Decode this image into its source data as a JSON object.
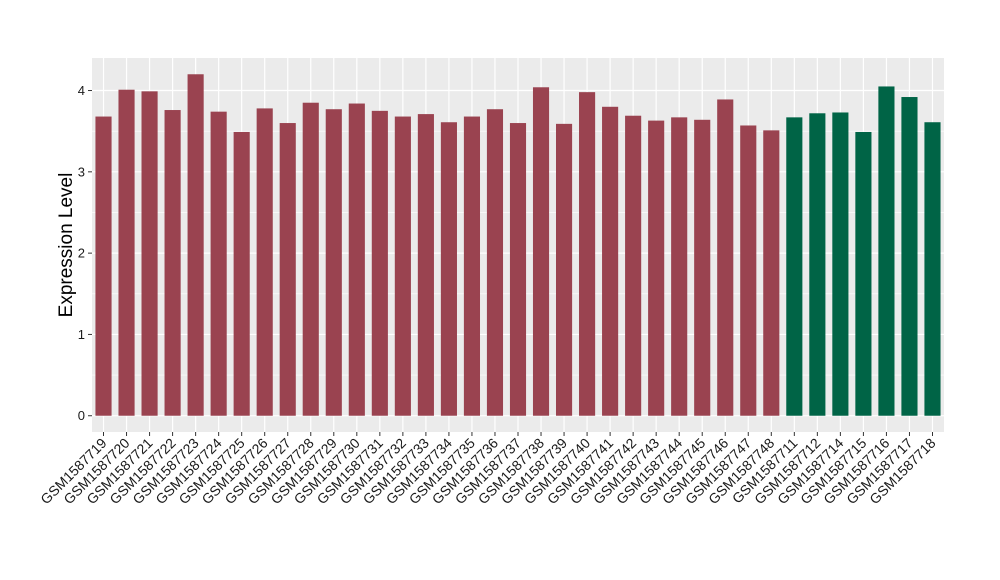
{
  "chart_data": {
    "type": "bar",
    "title": "",
    "xlabel": "",
    "ylabel": "Expression Level",
    "ylim": [
      -0.2,
      4.4
    ],
    "yticks": [
      0,
      1,
      2,
      3,
      4
    ],
    "grid": true,
    "legend": "none",
    "categories": [
      "GSM1587719",
      "GSM1587720",
      "GSM1587721",
      "GSM1587722",
      "GSM1587723",
      "GSM1587724",
      "GSM1587725",
      "GSM1587726",
      "GSM1587727",
      "GSM1587728",
      "GSM1587729",
      "GSM1587730",
      "GSM1587731",
      "GSM1587732",
      "GSM1587733",
      "GSM1587734",
      "GSM1587735",
      "GSM1587736",
      "GSM1587737",
      "GSM1587738",
      "GSM1587739",
      "GSM1587740",
      "GSM1587741",
      "GSM1587742",
      "GSM1587743",
      "GSM1587744",
      "GSM1587745",
      "GSM1587746",
      "GSM1587747",
      "GSM1587748",
      "GSM1587711",
      "GSM1587712",
      "GSM1587714",
      "GSM1587715",
      "GSM1587716",
      "GSM1587717",
      "GSM1587718"
    ],
    "values": [
      3.68,
      4.01,
      3.99,
      3.76,
      4.2,
      3.74,
      3.49,
      3.78,
      3.6,
      3.85,
      3.77,
      3.84,
      3.75,
      3.68,
      3.71,
      3.61,
      3.68,
      3.77,
      3.6,
      4.04,
      3.59,
      3.98,
      3.8,
      3.69,
      3.63,
      3.67,
      3.64,
      3.89,
      3.57,
      3.51,
      3.67,
      3.72,
      3.73,
      3.49,
      4.05,
      3.92,
      3.61
    ],
    "groups": [
      "a",
      "a",
      "a",
      "a",
      "a",
      "a",
      "a",
      "a",
      "a",
      "a",
      "a",
      "a",
      "a",
      "a",
      "a",
      "a",
      "a",
      "a",
      "a",
      "a",
      "a",
      "a",
      "a",
      "a",
      "a",
      "a",
      "a",
      "a",
      "a",
      "a",
      "b",
      "b",
      "b",
      "b",
      "b",
      "b",
      "b"
    ],
    "colors": {
      "a": "#9a4350",
      "b": "#006446"
    },
    "panel_background": "#ebebeb",
    "grid_color": "#ffffff"
  }
}
